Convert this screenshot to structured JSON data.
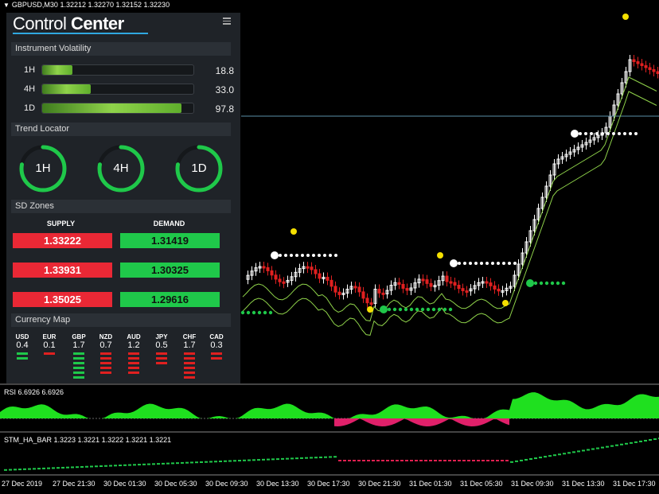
{
  "header": {
    "symbol_line": "GBPUSD,M30  1.32212 1.32270 1.32152 1.32230"
  },
  "panel": {
    "title_light": "Control",
    "title_bold": "Center",
    "volatility": {
      "heading": "Instrument Volatility",
      "rows": [
        {
          "label": "1H",
          "value": "18.8",
          "fill": 0.2
        },
        {
          "label": "4H",
          "value": "33.0",
          "fill": 0.32
        },
        {
          "label": "1D",
          "value": "97.8",
          "fill": 0.92
        }
      ]
    },
    "trend": {
      "heading": "Trend Locator",
      "items": [
        {
          "label": "1H",
          "level": 0.78,
          "color": "#1fc84a"
        },
        {
          "label": "4H",
          "level": 0.78,
          "color": "#1fc84a"
        },
        {
          "label": "1D",
          "level": 0.78,
          "color": "#1fc84a"
        }
      ]
    },
    "sd": {
      "heading": "SD Zones",
      "supply_label": "SUPPLY",
      "demand_label": "DEMAND",
      "supply": [
        "1.33222",
        "1.33931",
        "1.35025"
      ],
      "demand": [
        "1.31419",
        "1.30325",
        "1.29616"
      ]
    },
    "currency": {
      "heading": "Currency Map",
      "items": [
        {
          "name": "USD",
          "value": "0.4",
          "strength": 2,
          "color": "#1fc84a"
        },
        {
          "name": "EUR",
          "value": "0.1",
          "strength": 1,
          "color": "#e02020"
        },
        {
          "name": "GBP",
          "value": "1.7",
          "strength": 6,
          "color": "#1fc84a"
        },
        {
          "name": "NZD",
          "value": "0.7",
          "strength": 5,
          "color": "#e02020"
        },
        {
          "name": "AUD",
          "value": "1.2",
          "strength": 5,
          "color": "#e02020"
        },
        {
          "name": "JPY",
          "value": "0.5",
          "strength": 3,
          "color": "#e02020"
        },
        {
          "name": "CHF",
          "value": "1.7",
          "strength": 6,
          "color": "#e02020"
        },
        {
          "name": "CAD",
          "value": "0.3",
          "strength": 2,
          "color": "#e02020"
        }
      ]
    }
  },
  "rsi": {
    "label": "RSI 6.6926 6.6926"
  },
  "ha": {
    "label": "STM_HA_BAR 1.3223 1.3221 1.3222 1.3221 1.3221"
  },
  "time_axis": [
    "27 Dec 2019",
    "27 Dec 21:30",
    "30 Dec 01:30",
    "30 Dec 05:30",
    "30 Dec 09:30",
    "30 Dec 13:30",
    "30 Dec 17:30",
    "30 Dec 21:30",
    "31 Dec 01:30",
    "31 Dec 05:30",
    "31 Dec 09:30",
    "31 Dec 13:30",
    "31 Dec 17:30"
  ],
  "colors": {
    "bull": "#ffffff",
    "bear": "#e02020",
    "green": "#1fc84a",
    "accent": "#2fa8e0"
  }
}
